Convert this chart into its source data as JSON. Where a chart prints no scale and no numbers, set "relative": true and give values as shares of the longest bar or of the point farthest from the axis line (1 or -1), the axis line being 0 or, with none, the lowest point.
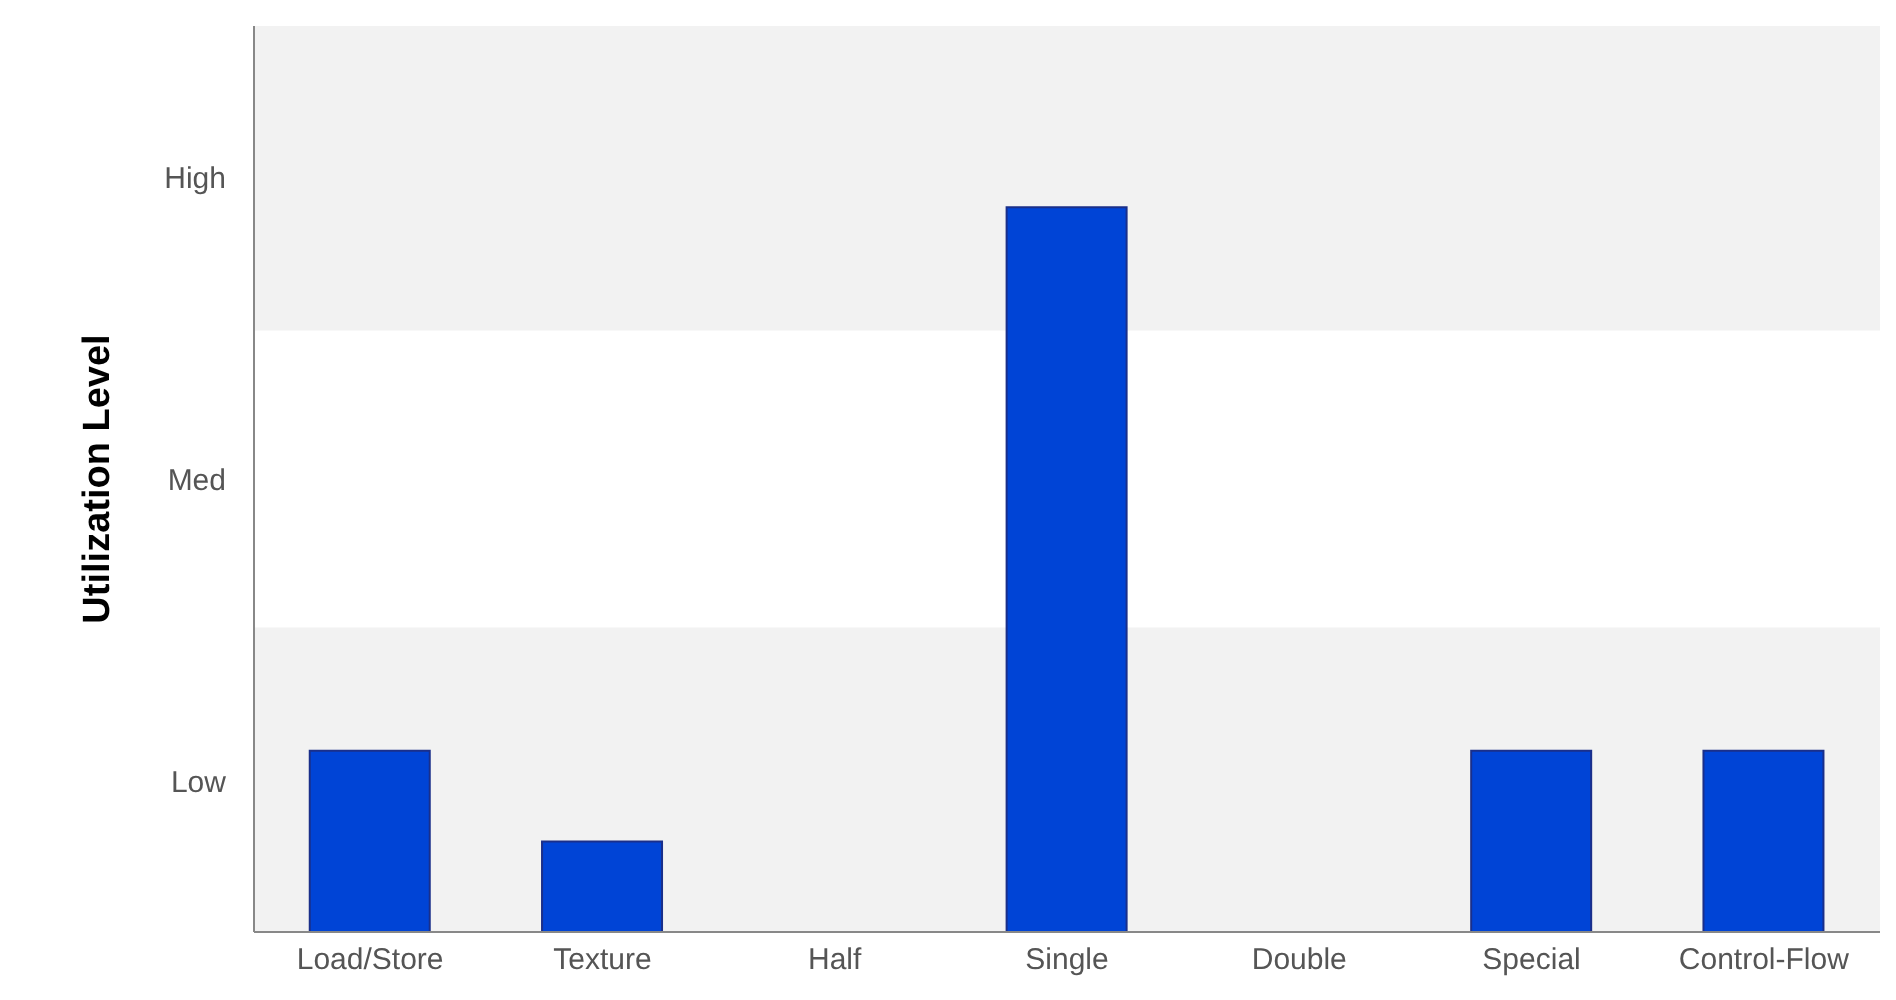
{
  "chart_data": {
    "type": "bar",
    "ylabel": "Utilization Level",
    "relative": true,
    "categories": [
      "Load/Store",
      "Texture",
      "Half",
      "Single",
      "Double",
      "Special",
      "Control-Flow"
    ],
    "values": [
      0.25,
      0.125,
      0,
      1,
      0,
      0.25,
      0.25
    ],
    "color": "#0044d6",
    "annotations": [
      "Low",
      "Med",
      "High"
    ],
    "bands": [
      {
        "axis": "y",
        "from": 0,
        "to": 0.42,
        "color": "#f2f2f2"
      },
      {
        "axis": "y",
        "from": 0.83,
        "to": 1.25,
        "color": "#f2f2f2"
      }
    ],
    "grid": false
  }
}
